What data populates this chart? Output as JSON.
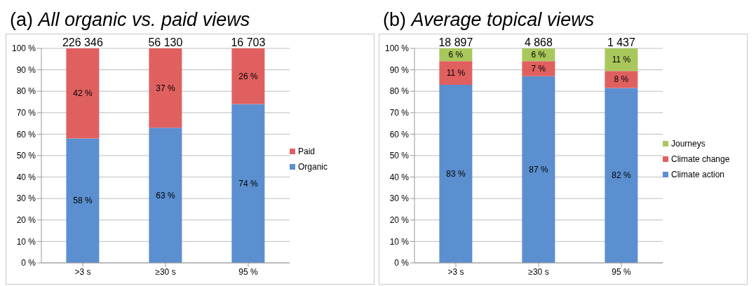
{
  "chart_data": [
    {
      "type": "bar",
      "title": "(a) All organic vs. paid views",
      "stacked": true,
      "categories": [
        ">3 s",
        "≥30 s",
        "95 %"
      ],
      "series": [
        {
          "name": "Organic",
          "color": "#5b8fd0",
          "values": [
            58,
            63,
            74
          ],
          "value_labels": [
            "58 %",
            "63 %",
            "74 %"
          ]
        },
        {
          "name": "Paid",
          "color": "#e06060",
          "values": [
            42,
            37,
            26
          ],
          "value_labels": [
            "42 %",
            "37 %",
            "26 %"
          ]
        }
      ],
      "annotations": [
        {
          "text": "226 346",
          "x": ">3 s",
          "y": 100
        },
        {
          "text": "56 130",
          "x": "≥30 s",
          "y": 100
        },
        {
          "text": "16 703",
          "x": "95 %",
          "y": 100
        }
      ],
      "ylim": [
        0,
        100
      ],
      "yticks": [
        {
          "value": 0,
          "label": "0 %"
        },
        {
          "value": 10,
          "label": "10 %"
        },
        {
          "value": 20,
          "label": "20 %"
        },
        {
          "value": 30,
          "label": "30 %"
        },
        {
          "value": 40,
          "label": "40 %"
        },
        {
          "value": 50,
          "label": "50 %"
        },
        {
          "value": 60,
          "label": "60 %"
        },
        {
          "value": 70,
          "label": "70 %"
        },
        {
          "value": 80,
          "label": "80 %"
        },
        {
          "value": 90,
          "label": "90 %"
        },
        {
          "value": 100,
          "label": "100 %"
        }
      ],
      "grid": "y",
      "legend": "right"
    },
    {
      "type": "bar",
      "title": "(b) Average topical views",
      "stacked": true,
      "categories": [
        ">3 s",
        "≥30 s",
        "95 %"
      ],
      "series": [
        {
          "name": "Climate action",
          "color": "#5b8fd0",
          "values": [
            83,
            87,
            81.5
          ],
          "value_labels": [
            "83 %",
            "87 %",
            "82 %"
          ]
        },
        {
          "name": "Climate change",
          "color": "#e06060",
          "values": [
            11,
            7,
            8
          ],
          "value_labels": [
            "11 %",
            "7 %",
            "8 %"
          ]
        },
        {
          "name": "Journeys",
          "color": "#a9c85c",
          "values": [
            6,
            6,
            10.5
          ],
          "value_labels": [
            "6 %",
            "6 %",
            "11 %"
          ]
        }
      ],
      "annotations": [
        {
          "text": "18 897",
          "x": ">3 s",
          "y": 100
        },
        {
          "text": "4 868",
          "x": "≥30 s",
          "y": 100
        },
        {
          "text": "1 437",
          "x": "95 %",
          "y": 100
        }
      ],
      "ylim": [
        0,
        100
      ],
      "yticks": [
        {
          "value": 0,
          "label": "0 %"
        },
        {
          "value": 10,
          "label": "10 %"
        },
        {
          "value": 20,
          "label": "20 %"
        },
        {
          "value": 30,
          "label": "30 %"
        },
        {
          "value": 40,
          "label": "40 %"
        },
        {
          "value": 50,
          "label": "50 %"
        },
        {
          "value": 60,
          "label": "60 %"
        },
        {
          "value": 70,
          "label": "70 %"
        },
        {
          "value": 80,
          "label": "80 %"
        },
        {
          "value": 90,
          "label": "90 %"
        },
        {
          "value": 100,
          "label": "100 %"
        }
      ],
      "grid": "y",
      "legend": "right"
    }
  ]
}
